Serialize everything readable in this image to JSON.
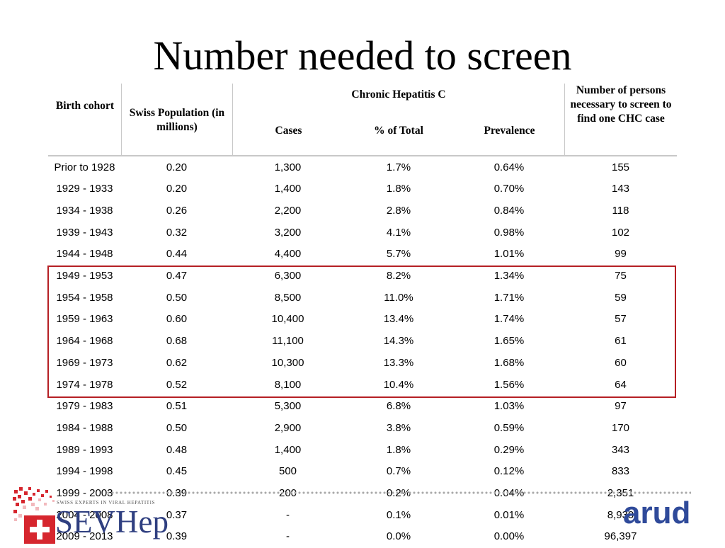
{
  "title": "Number needed to screen",
  "headers": {
    "birth_cohort": "Birth cohort",
    "swiss_population": "Swiss Population (in millions)",
    "chronic_hepatitis_c": "Chronic Hepatitis C",
    "cases": "Cases",
    "pct_total": "% of Total",
    "prevalence": "Prevalence",
    "nns": "Number of persons necessary to screen to find one CHC case"
  },
  "rows": [
    [
      "Prior to 1928",
      "0.20",
      "1,300",
      "1.7%",
      "0.64%",
      "155"
    ],
    [
      "1929 - 1933",
      "0.20",
      "1,400",
      "1.8%",
      "0.70%",
      "143"
    ],
    [
      "1934 - 1938",
      "0.26",
      "2,200",
      "2.8%",
      "0.84%",
      "118"
    ],
    [
      "1939 - 1943",
      "0.32",
      "3,200",
      "4.1%",
      "0.98%",
      "102"
    ],
    [
      "1944 - 1948",
      "0.44",
      "4,400",
      "5.7%",
      "1.01%",
      "99"
    ],
    [
      "1949 - 1953",
      "0.47",
      "6,300",
      "8.2%",
      "1.34%",
      "75"
    ],
    [
      "1954 - 1958",
      "0.50",
      "8,500",
      "11.0%",
      "1.71%",
      "59"
    ],
    [
      "1959 - 1963",
      "0.60",
      "10,400",
      "13.4%",
      "1.74%",
      "57"
    ],
    [
      "1964 - 1968",
      "0.68",
      "11,100",
      "14.3%",
      "1.65%",
      "61"
    ],
    [
      "1969 - 1973",
      "0.62",
      "10,300",
      "13.3%",
      "1.68%",
      "60"
    ],
    [
      "1974 - 1978",
      "0.52",
      "8,100",
      "10.4%",
      "1.56%",
      "64"
    ],
    [
      "1979 - 1983",
      "0.51",
      "5,300",
      "6.8%",
      "1.03%",
      "97"
    ],
    [
      "1984 - 1988",
      "0.50",
      "2,900",
      "3.8%",
      "0.59%",
      "170"
    ],
    [
      "1989 - 1993",
      "0.48",
      "1,400",
      "1.8%",
      "0.29%",
      "343"
    ],
    [
      "1994 - 1998",
      "0.45",
      "500",
      "0.7%",
      "0.12%",
      "833"
    ],
    [
      "1999 - 2003",
      "0.39",
      "200",
      "0.2%",
      "0.04%",
      "2,351"
    ],
    [
      "2004 - 2008",
      "0.37",
      "-",
      "0.1%",
      "0.01%",
      "8,930"
    ],
    [
      "2009 - 2013",
      "0.39",
      "-",
      "0.0%",
      "0.00%",
      "96,397"
    ]
  ],
  "highlight": {
    "first_row": "1949 - 1953",
    "last_row": "1974 - 1978",
    "color": "#b51f24"
  },
  "logos": {
    "sevhep_tagline": "SWISS EXPERTS IN VIRAL HEPATITIS",
    "sevhep_name": "SEVHep",
    "arud_name": "arud",
    "sevhep_color": "#2f3f80",
    "arud_color": "#2f4a9a"
  }
}
